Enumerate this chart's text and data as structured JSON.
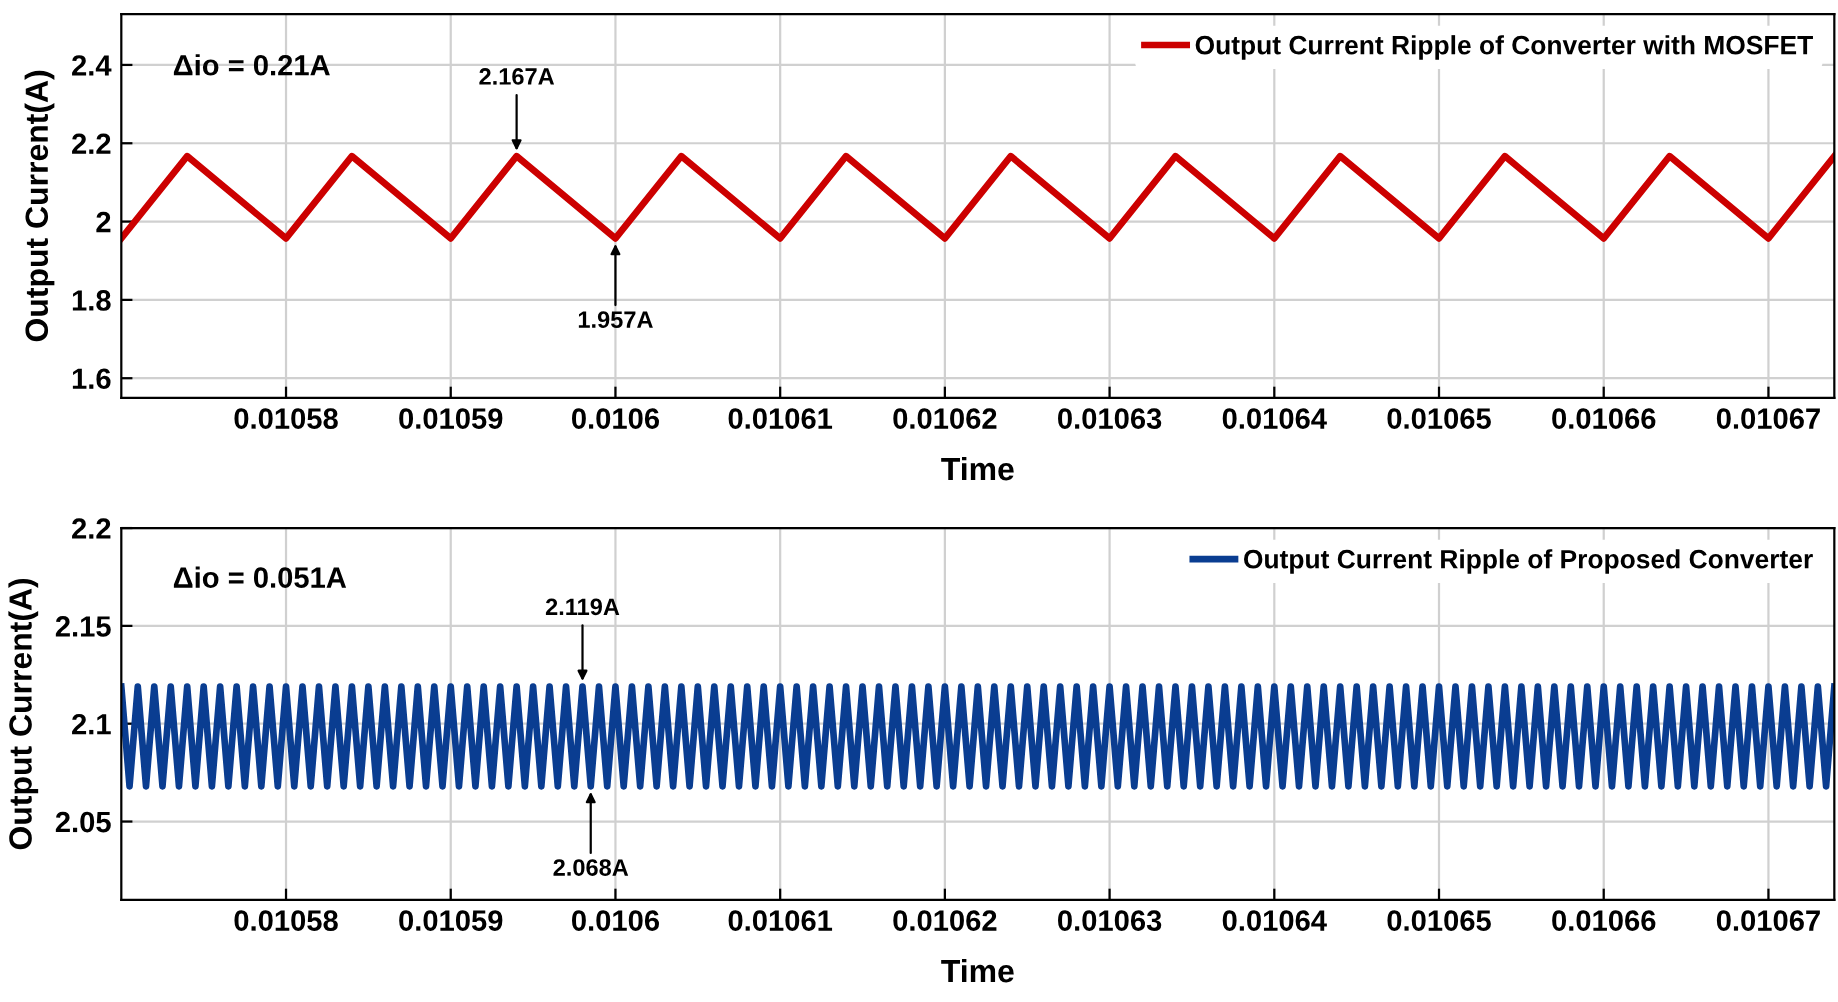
{
  "chart_data": [
    {
      "type": "line",
      "xlabel": "Time",
      "ylabel": "Output Current(A)",
      "series": [
        {
          "name": "Output Current Ripple of Converter with MOSFET",
          "color": "#cc0000",
          "x": [
            0.01057,
            0.010574,
            0.01058,
            0.010584,
            0.01059,
            0.010594,
            0.0106,
            0.010604,
            0.01061,
            0.010614,
            0.01062,
            0.010624,
            0.01063,
            0.010634,
            0.01064,
            0.010644,
            0.01065,
            0.010654,
            0.01066,
            0.010664,
            0.01067,
            0.010674
          ],
          "values": [
            1.957,
            2.167,
            1.957,
            2.167,
            1.957,
            2.167,
            1.957,
            2.167,
            1.957,
            2.167,
            1.957,
            2.167,
            1.957,
            2.167,
            1.957,
            2.167,
            1.957,
            2.167,
            1.957,
            2.167,
            1.957,
            2.167
          ]
        }
      ],
      "xlim": [
        0.01057,
        0.010674
      ],
      "xticks": [
        0.01058,
        0.01059,
        0.0106,
        0.01061,
        0.01062,
        0.01063,
        0.01064,
        0.01065,
        0.01066,
        0.01067
      ],
      "ylim": [
        1.55,
        2.53
      ],
      "yticks": [
        1.6,
        1.8,
        2,
        2.2,
        2.4
      ],
      "grid": true,
      "legend": "top right",
      "annotations": [
        "Δio = 0.21A",
        {
          "text": "2.167A",
          "x": 0.010594,
          "y": 2.167
        },
        {
          "text": "1.957A",
          "x": 0.0106,
          "y": 1.957
        }
      ]
    },
    {
      "type": "line",
      "xlabel": "Time",
      "ylabel": "Output Current(A)",
      "series": [
        {
          "name": "Output Current Ripple of Proposed Converter",
          "color": "#0a3d91",
          "x": [
            0.01057,
            0.0105705,
            0.010571,
            0.0105715,
            0.010572,
            0.0105725,
            0.010573,
            0.0105735,
            0.010574,
            0.0105745,
            0.010575,
            0.0105755,
            0.010576,
            0.0105765,
            0.010577,
            0.0105775,
            0.010578,
            0.0105785,
            0.010579,
            0.0105795,
            0.01058,
            0.0105805,
            0.010581,
            0.0105815,
            0.010582,
            0.0105825,
            0.010583,
            0.0105835,
            0.010584,
            0.0105845,
            0.010585,
            0.0105855,
            0.010586,
            0.0105865,
            0.010587,
            0.0105875,
            0.010588,
            0.0105885,
            0.010589,
            0.0105895,
            0.01059,
            0.0105905,
            0.010591,
            0.0105915,
            0.010592,
            0.0105925,
            0.010593,
            0.0105935,
            0.010594,
            0.0105945,
            0.010595,
            0.0105955,
            0.010596,
            0.0105965,
            0.010597,
            0.0105975,
            0.010598,
            0.0105985,
            0.010599,
            0.0105995,
            0.0106,
            0.0106005,
            0.010601,
            0.0106015,
            0.010602,
            0.0106025,
            0.010603,
            0.0106035,
            0.010604,
            0.0106045,
            0.010605,
            0.0106055,
            0.010606,
            0.0106065,
            0.010607,
            0.0106075,
            0.010608,
            0.0106085,
            0.010609,
            0.0106095,
            0.01061,
            0.0106105,
            0.010611,
            0.0106115,
            0.010612,
            0.0106125,
            0.010613,
            0.0106135,
            0.010614,
            0.0106145,
            0.010615,
            0.0106155,
            0.010616,
            0.0106165,
            0.010617,
            0.0106175,
            0.010618,
            0.0106185,
            0.010619,
            0.0106195,
            0.01062,
            0.0106205,
            0.010621,
            0.0106215,
            0.010622,
            0.0106225,
            0.010623,
            0.0106235,
            0.010624,
            0.0106245,
            0.010625,
            0.0106255,
            0.010626,
            0.0106265,
            0.010627,
            0.0106275,
            0.010628,
            0.0106285,
            0.010629,
            0.0106295,
            0.01063,
            0.0106305,
            0.010631,
            0.0106315,
            0.010632,
            0.0106325,
            0.010633,
            0.0106335,
            0.010634,
            0.0106345,
            0.010635,
            0.0106355,
            0.010636,
            0.0106365,
            0.010637,
            0.0106375,
            0.010638,
            0.0106385,
            0.010639,
            0.0106395,
            0.01064,
            0.0106405,
            0.010641,
            0.0106415,
            0.010642,
            0.0106425,
            0.010643,
            0.0106435,
            0.010644,
            0.0106445,
            0.010645,
            0.0106455,
            0.010646,
            0.0106465,
            0.010647,
            0.0106475,
            0.010648,
            0.0106485,
            0.010649,
            0.0106495,
            0.01065,
            0.0106505,
            0.010651,
            0.0106515,
            0.010652,
            0.0106525,
            0.010653,
            0.0106535,
            0.010654,
            0.0106545,
            0.010655,
            0.0106555,
            0.010656,
            0.0106565,
            0.010657,
            0.0106575,
            0.010658,
            0.0106585,
            0.010659,
            0.0106595,
            0.01066,
            0.0106605,
            0.010661,
            0.0106615,
            0.010662,
            0.0106625,
            0.010663,
            0.0106635,
            0.010664,
            0.0106645,
            0.010665,
            0.0106655,
            0.010666,
            0.0106665,
            0.010667,
            0.0106675,
            0.010668,
            0.0106685,
            0.010669,
            0.0106695,
            0.01067,
            0.0106705,
            0.010671,
            0.0106715,
            0.010672,
            0.0106725,
            0.010673,
            0.0106735,
            0.010674
          ],
          "values": [
            2.119,
            2.068,
            2.119,
            2.068,
            2.119,
            2.068,
            2.119,
            2.068,
            2.119,
            2.068,
            2.119,
            2.068,
            2.119,
            2.068,
            2.119,
            2.068,
            2.119,
            2.068,
            2.119,
            2.068,
            2.119,
            2.068,
            2.119,
            2.068,
            2.119,
            2.068,
            2.119,
            2.068,
            2.119,
            2.068,
            2.119,
            2.068,
            2.119,
            2.068,
            2.119,
            2.068,
            2.119,
            2.068,
            2.119,
            2.068,
            2.119,
            2.068,
            2.119,
            2.068,
            2.119,
            2.068,
            2.119,
            2.068,
            2.119,
            2.068,
            2.119,
            2.068,
            2.119,
            2.068,
            2.119,
            2.068,
            2.119,
            2.068,
            2.119,
            2.068,
            2.119,
            2.068,
            2.119,
            2.068,
            2.119,
            2.068,
            2.119,
            2.068,
            2.119,
            2.068,
            2.119,
            2.068,
            2.119,
            2.068,
            2.119,
            2.068,
            2.119,
            2.068,
            2.119,
            2.068,
            2.119,
            2.068,
            2.119,
            2.068,
            2.119,
            2.068,
            2.119,
            2.068,
            2.119,
            2.068,
            2.119,
            2.068,
            2.119,
            2.068,
            2.119,
            2.068,
            2.119,
            2.068,
            2.119,
            2.068,
            2.119,
            2.068,
            2.119,
            2.068,
            2.119,
            2.068,
            2.119,
            2.068,
            2.119,
            2.068,
            2.119,
            2.068,
            2.119,
            2.068,
            2.119,
            2.068,
            2.119,
            2.068,
            2.119,
            2.068,
            2.119,
            2.068,
            2.119,
            2.068,
            2.119,
            2.068,
            2.119,
            2.068,
            2.119,
            2.068,
            2.119,
            2.068,
            2.119,
            2.068,
            2.119,
            2.068,
            2.119,
            2.068,
            2.119,
            2.068,
            2.119,
            2.068,
            2.119,
            2.068,
            2.119,
            2.068,
            2.119,
            2.068,
            2.119,
            2.068,
            2.119,
            2.068,
            2.119,
            2.068,
            2.119,
            2.068,
            2.119,
            2.068,
            2.119,
            2.068,
            2.119,
            2.068,
            2.119,
            2.068,
            2.119,
            2.068,
            2.119,
            2.068,
            2.119,
            2.068,
            2.119,
            2.068,
            2.119,
            2.068,
            2.119,
            2.068,
            2.119,
            2.068,
            2.119,
            2.068,
            2.119,
            2.068,
            2.119,
            2.068,
            2.119,
            2.068,
            2.119,
            2.068,
            2.119,
            2.068,
            2.119,
            2.068,
            2.119,
            2.068,
            2.119,
            2.068,
            2.119,
            2.068,
            2.119,
            2.068,
            2.119,
            2.068,
            2.119,
            2.068,
            2.119,
            2.068,
            2.119,
            2.068,
            2.119
          ]
        }
      ],
      "xlim": [
        0.01057,
        0.010674
      ],
      "xticks": [
        0.01058,
        0.01059,
        0.0106,
        0.01061,
        0.01062,
        0.01063,
        0.01064,
        0.01065,
        0.01066,
        0.01067
      ],
      "ylim": [
        2.01,
        2.2
      ],
      "yticks": [
        2.05,
        2.1,
        2.15,
        2.2
      ],
      "grid": true,
      "legend": "top right",
      "annotations": [
        "Δio = 0.051A",
        {
          "text": "2.119A",
          "x": 0.010598,
          "y": 2.119
        },
        {
          "text": "2.068A",
          "x": 0.0105985,
          "y": 2.068
        }
      ]
    }
  ]
}
